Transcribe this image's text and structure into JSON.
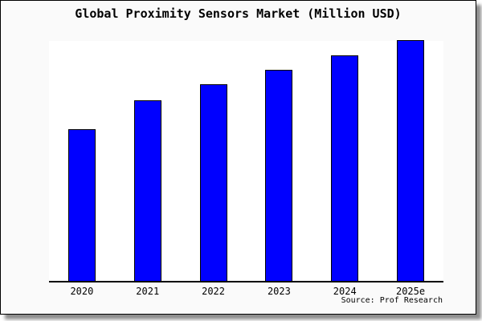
{
  "chart_data": {
    "type": "bar",
    "title": "Global Proximity Sensors Market (Million USD)",
    "categories": [
      "2020",
      "2021",
      "2022",
      "2023",
      "2024",
      "2025e"
    ],
    "values": [
      63,
      75,
      81.5,
      87.7,
      93.7,
      100
    ],
    "value_note": "y-axis has no scale or gridlines; values estimated as percent of tallest (2025e) bar height",
    "xlabel": "",
    "ylabel": "",
    "ylim": [
      0,
      100
    ],
    "grid": false,
    "legend": false,
    "source": "Source: Prof Research"
  },
  "colors": {
    "bar_fill": "#0000ff",
    "bar_border": "#000000",
    "box_background": "#fafafa",
    "plot_background": "#ffffff",
    "axis": "#000000",
    "text": "#000000",
    "shadow": "#8d8d8d"
  }
}
